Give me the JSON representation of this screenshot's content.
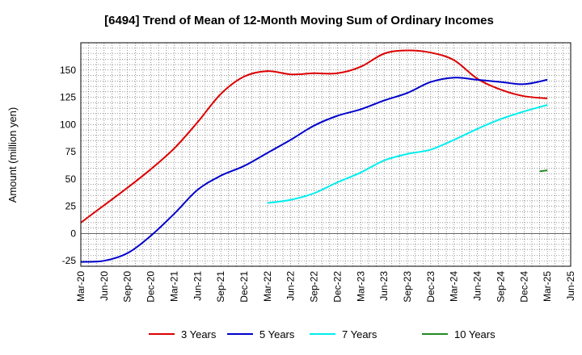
{
  "chart_data": {
    "type": "line",
    "title": "[6494]  Trend of Mean of 12-Month Moving Sum of Ordinary Incomes",
    "ylabel": "Amount (million yen)",
    "xlabel": "",
    "ylim": [
      -30,
      175
    ],
    "yticks": [
      -25,
      0,
      25,
      50,
      75,
      100,
      125,
      150
    ],
    "xlim": [
      "Mar-20",
      "Jun-25"
    ],
    "xticks": [
      "Mar-20",
      "Jun-20",
      "Sep-20",
      "Dec-20",
      "Mar-21",
      "Jun-21",
      "Sep-21",
      "Dec-21",
      "Mar-22",
      "Jun-22",
      "Sep-22",
      "Dec-22",
      "Mar-23",
      "Jun-23",
      "Sep-23",
      "Dec-23",
      "Mar-24",
      "Jun-24",
      "Sep-24",
      "Dec-24",
      "Mar-25",
      "Jun-25"
    ],
    "grid": true,
    "legend": "bottom",
    "series": [
      {
        "name": "3 Years",
        "color": "#dd0000",
        "x": [
          "Mar-20",
          "Jun-20",
          "Sep-20",
          "Dec-20",
          "Mar-21",
          "Jun-21",
          "Sep-21",
          "Dec-21",
          "Mar-22",
          "Jun-22",
          "Sep-22",
          "Dec-22",
          "Mar-23",
          "Jun-23",
          "Sep-23",
          "Dec-23",
          "Mar-24",
          "Jun-24",
          "Sep-24",
          "Dec-24",
          "Mar-25"
        ],
        "y": [
          10,
          26,
          42,
          59,
          78,
          102,
          128,
          144,
          149,
          146,
          147,
          147,
          153,
          165,
          168,
          166,
          159,
          142,
          132,
          126,
          124
        ]
      },
      {
        "name": "5 Years",
        "color": "#0000cc",
        "x": [
          "Mar-20",
          "Jun-20",
          "Sep-20",
          "Dec-20",
          "Mar-21",
          "Jun-21",
          "Sep-21",
          "Dec-21",
          "Mar-22",
          "Jun-22",
          "Sep-22",
          "Dec-22",
          "Mar-23",
          "Jun-23",
          "Sep-23",
          "Dec-23",
          "Mar-24",
          "Jun-24",
          "Sep-24",
          "Dec-24",
          "Mar-25"
        ],
        "y": [
          -26,
          -25,
          -18,
          -2,
          18,
          40,
          53,
          62,
          74,
          86,
          99,
          108,
          114,
          122,
          129,
          139,
          143,
          141,
          139,
          137,
          141
        ]
      },
      {
        "name": "7 Years",
        "color": "#00eeee",
        "x": [
          "Mar-22",
          "Jun-22",
          "Sep-22",
          "Dec-22",
          "Mar-23",
          "Jun-23",
          "Sep-23",
          "Dec-23",
          "Mar-24",
          "Jun-24",
          "Sep-24",
          "Dec-24",
          "Mar-25"
        ],
        "y": [
          28,
          31,
          37,
          47,
          56,
          67,
          73,
          77,
          86,
          96,
          105,
          112,
          118
        ]
      },
      {
        "name": "10 Years",
        "color": "#228b22",
        "x": [
          "Feb-25",
          "Mar-25"
        ],
        "y": [
          57,
          58
        ]
      }
    ]
  }
}
